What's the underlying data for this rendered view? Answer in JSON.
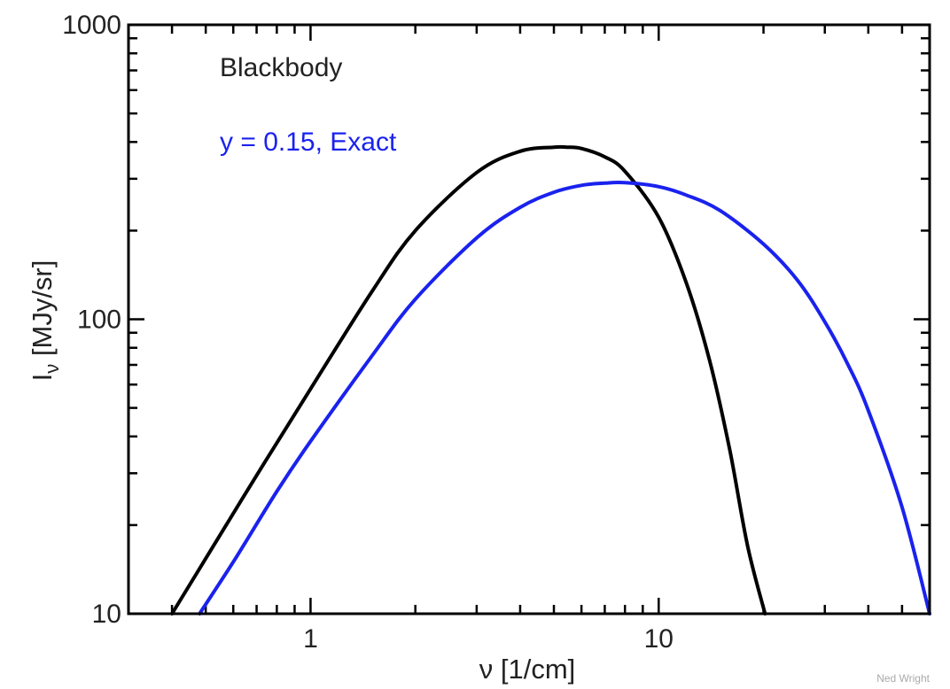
{
  "chart_data": {
    "type": "line",
    "title": "",
    "xlabel": "ν [1/cm]",
    "ylabel_main": "I",
    "ylabel_sub": "ν",
    "ylabel_rest": " [MJy/sr]",
    "xscale": "log",
    "yscale": "log",
    "xlim": [
      0.3,
      60
    ],
    "ylim": [
      10,
      1000
    ],
    "x_ticks": [
      {
        "value": 1,
        "label": "1"
      },
      {
        "value": 10,
        "label": "10"
      }
    ],
    "y_ticks": [
      {
        "value": 10,
        "label": "10"
      },
      {
        "value": 100,
        "label": "100"
      },
      {
        "value": 1000,
        "label": "1000"
      }
    ],
    "grid": false,
    "legend_placement": "top-left",
    "credit": "Ned Wright",
    "series": [
      {
        "name": "Blackbody",
        "color": "#000000",
        "x": [
          0.4,
          0.5,
          0.7,
          1.0,
          1.5,
          2.0,
          3.0,
          4.0,
          5.0,
          5.45,
          6.0,
          7.0,
          8.0,
          10.0,
          12.0,
          14.0,
          16.0,
          18.0,
          20.2
        ],
        "y": [
          10.0,
          15.4,
          29.5,
          58.0,
          124,
          200,
          315,
          372,
          384,
          384,
          380,
          356,
          318,
          222,
          133,
          72.5,
          36.0,
          17.0,
          10.0
        ]
      },
      {
        "name": "y = 0.15, Exact",
        "color": "#1a22ee",
        "x": [
          0.48,
          0.6,
          0.8,
          1.0,
          1.5,
          2.0,
          3.0,
          4.0,
          5.0,
          6.0,
          7.0,
          8.0,
          10.0,
          12.0,
          15.0,
          20.0,
          25.0,
          30.0,
          35.0,
          40.0,
          50.0,
          60.0
        ],
        "y": [
          10.0,
          15.0,
          26.0,
          38.5,
          75.0,
          117,
          189,
          240,
          270,
          285,
          290,
          291,
          282,
          264,
          234,
          180,
          136,
          98.0,
          70.0,
          49.0,
          23.0,
          10.0
        ]
      }
    ]
  }
}
